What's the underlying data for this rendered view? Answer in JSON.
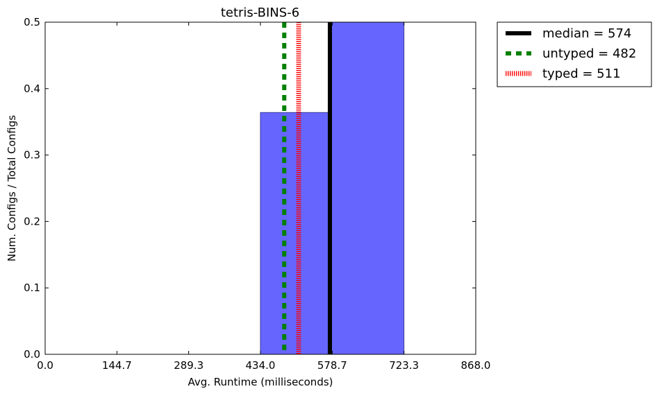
{
  "chart_data": {
    "type": "bar",
    "title": "tetris-BINS-6",
    "xlabel": "Avg. Runtime (milliseconds)",
    "ylabel": "Num. Configs / Total Configs",
    "xlim": [
      0.0,
      868.0
    ],
    "ylim": [
      0.0,
      0.5
    ],
    "x_ticks": [
      "0.0",
      "144.7",
      "289.3",
      "434.0",
      "578.7",
      "723.3",
      "868.0"
    ],
    "y_ticks": [
      "0.0",
      "0.1",
      "0.2",
      "0.3",
      "0.4",
      "0.5"
    ],
    "grid": false,
    "bars": [
      {
        "x_start": 434.0,
        "x_end": 571.5,
        "value": 0.364
      },
      {
        "x_start": 571.5,
        "x_end": 723.3,
        "value": 0.5
      }
    ],
    "bar_color": "#6666ff",
    "bar_edge_color": "#3a3a99",
    "reference_lines": [
      {
        "label": "median = 574",
        "x": 574,
        "color": "#000000",
        "style": "solid"
      },
      {
        "label": "untyped = 482",
        "x": 482,
        "color": "#008000",
        "style": "dashed"
      },
      {
        "label": "typed = 511",
        "x": 511,
        "color": "#ff0000",
        "style": "dotted"
      }
    ],
    "legend_position": "outside-top-right"
  }
}
